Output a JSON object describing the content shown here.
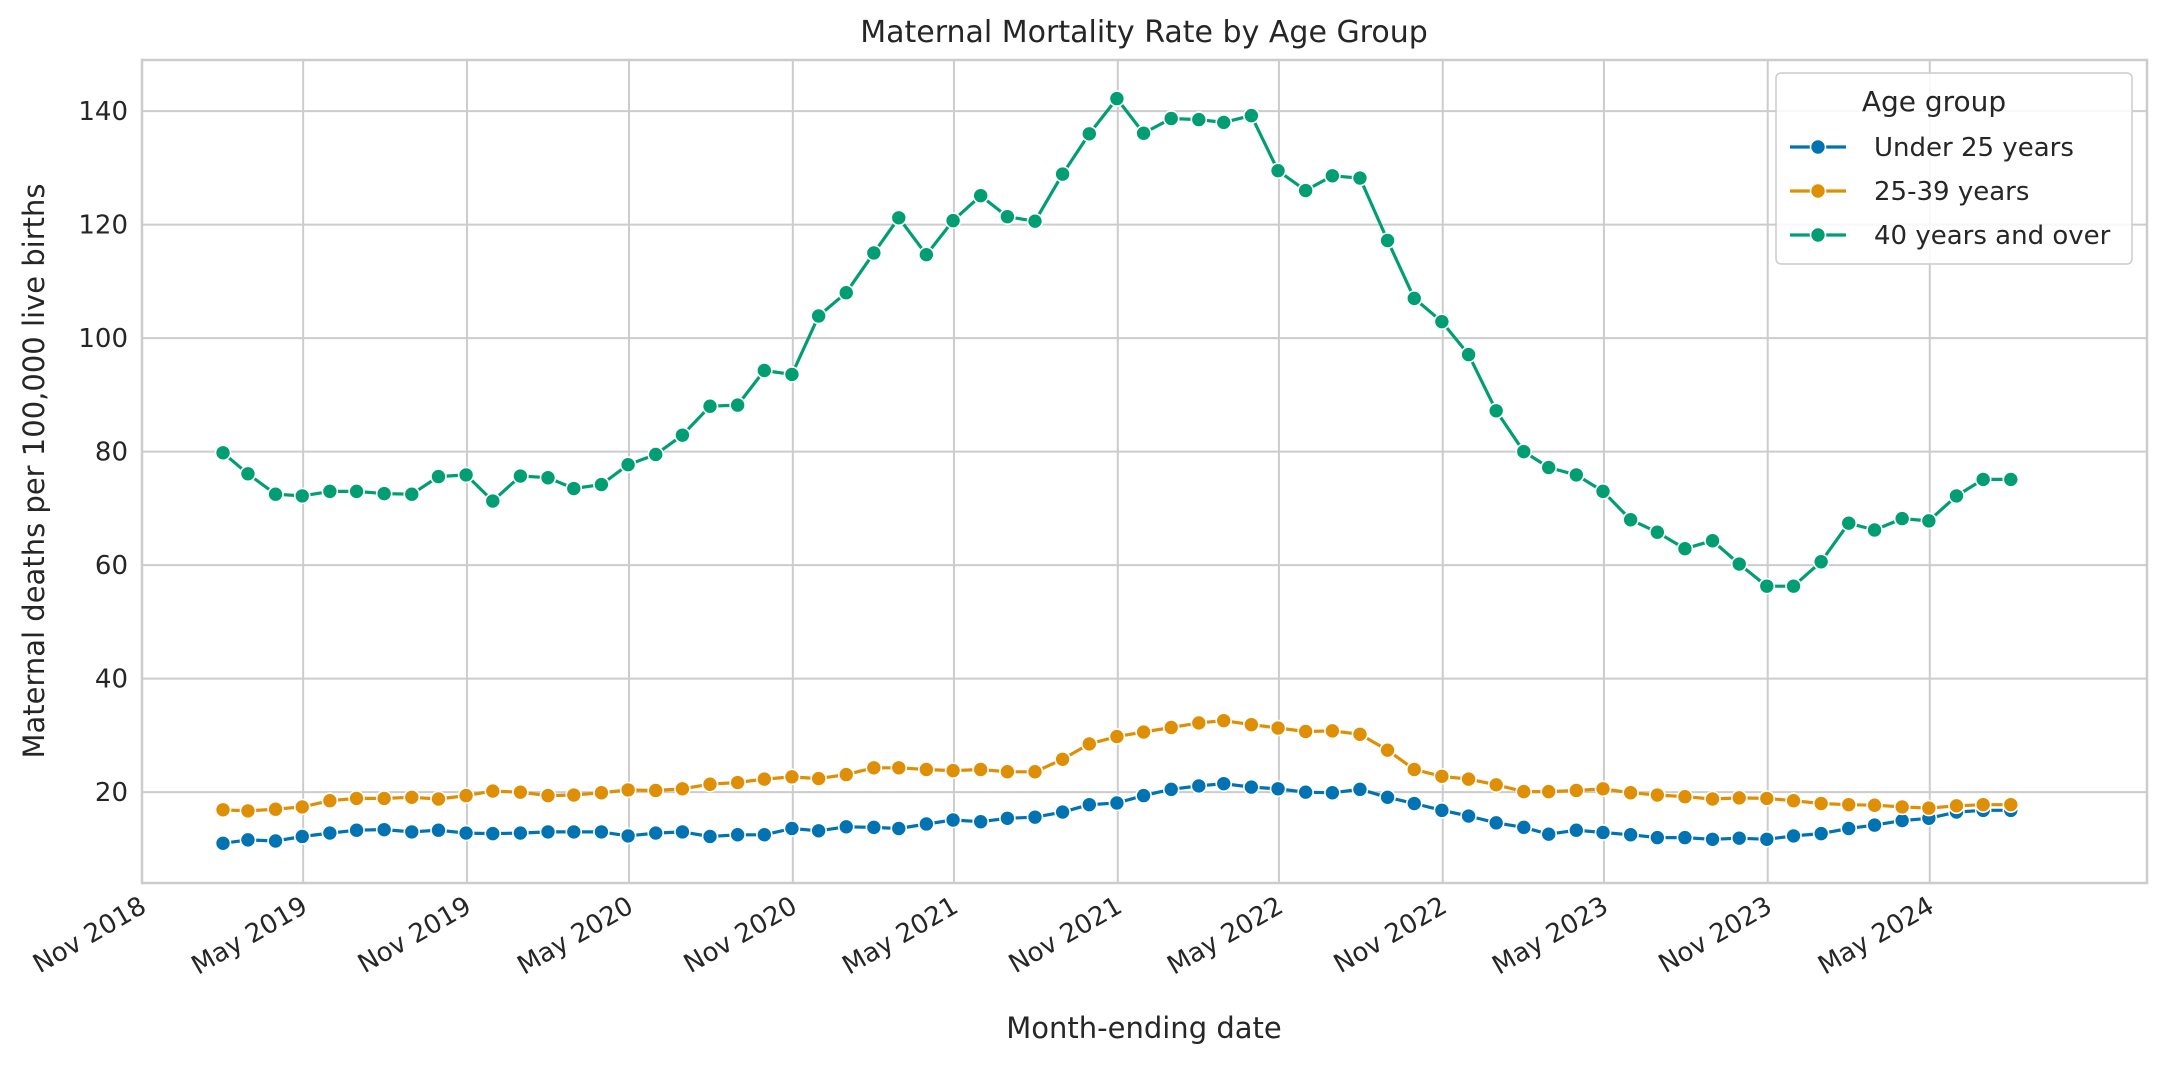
{
  "chart_data": {
    "type": "line",
    "title": "Maternal Mortality Rate by Age Group",
    "xlabel": "Month-ending date",
    "ylabel": "Maternal deaths per 100,000 live births",
    "xlim": [
      "2018-11-01",
      "2024-12-31"
    ],
    "ylim": [
      4,
      149
    ],
    "y_ticks": [
      20,
      40,
      60,
      80,
      100,
      120,
      140
    ],
    "x_ticks": [
      {
        "date": "2018-11-01",
        "label": "Nov 2018"
      },
      {
        "date": "2019-05-01",
        "label": "May 2019"
      },
      {
        "date": "2019-11-01",
        "label": "Nov 2019"
      },
      {
        "date": "2020-05-01",
        "label": "May 2020"
      },
      {
        "date": "2020-11-01",
        "label": "Nov 2020"
      },
      {
        "date": "2021-05-01",
        "label": "May 2021"
      },
      {
        "date": "2021-11-01",
        "label": "Nov 2021"
      },
      {
        "date": "2022-05-01",
        "label": "May 2022"
      },
      {
        "date": "2022-11-01",
        "label": "Nov 2022"
      },
      {
        "date": "2023-05-01",
        "label": "May 2023"
      },
      {
        "date": "2023-11-01",
        "label": "Nov 2023"
      },
      {
        "date": "2024-05-01",
        "label": "May 2024"
      }
    ],
    "grid": true,
    "legend": {
      "title": "Age group",
      "position": "top-right"
    },
    "x": [
      "2019-01-31",
      "2019-02-28",
      "2019-03-31",
      "2019-04-30",
      "2019-05-31",
      "2019-06-30",
      "2019-07-31",
      "2019-08-31",
      "2019-09-30",
      "2019-10-31",
      "2019-11-30",
      "2019-12-31",
      "2020-01-31",
      "2020-02-29",
      "2020-03-31",
      "2020-04-30",
      "2020-05-31",
      "2020-06-30",
      "2020-07-31",
      "2020-08-31",
      "2020-09-30",
      "2020-10-31",
      "2020-11-30",
      "2020-12-31",
      "2021-01-31",
      "2021-02-28",
      "2021-03-31",
      "2021-04-30",
      "2021-05-31",
      "2021-06-30",
      "2021-07-31",
      "2021-08-31",
      "2021-09-30",
      "2021-10-31",
      "2021-11-30",
      "2021-12-31",
      "2022-01-31",
      "2022-02-28",
      "2022-03-31",
      "2022-04-30",
      "2022-05-31",
      "2022-06-30",
      "2022-07-31",
      "2022-08-31",
      "2022-09-30",
      "2022-10-31",
      "2022-11-30",
      "2022-12-31",
      "2023-01-31",
      "2023-02-28",
      "2023-03-31",
      "2023-04-30",
      "2023-05-31",
      "2023-06-30",
      "2023-07-31",
      "2023-08-31",
      "2023-09-30",
      "2023-10-31",
      "2023-11-30",
      "2023-12-31",
      "2024-01-31",
      "2024-02-29",
      "2024-03-31",
      "2024-04-30",
      "2024-05-31",
      "2024-06-30",
      "2024-07-31"
    ],
    "series": [
      {
        "name": "Under 25 years",
        "color": "#0173b2",
        "values": [
          11.0,
          11.6,
          11.4,
          12.2,
          12.8,
          13.3,
          13.4,
          13.0,
          13.3,
          12.8,
          12.7,
          12.8,
          13.0,
          13.0,
          13.0,
          12.3,
          12.8,
          13.0,
          12.2,
          12.5,
          12.5,
          13.6,
          13.2,
          13.9,
          13.8,
          13.6,
          14.4,
          15.1,
          14.8,
          15.4,
          15.6,
          16.5,
          17.8,
          18.1,
          19.4,
          20.5,
          21.1,
          21.5,
          20.9,
          20.6,
          20.0,
          19.9,
          20.5,
          19.1,
          18.0,
          16.8,
          15.8,
          14.6,
          13.8,
          12.6,
          13.3,
          12.9,
          12.5,
          12.0,
          12.0,
          11.7,
          11.9,
          11.7,
          12.3,
          12.7,
          13.6,
          14.2,
          15.0,
          15.4,
          16.5,
          16.8,
          16.8
        ]
      },
      {
        "name": "25-39 years",
        "color": "#de8f05",
        "values": [
          16.9,
          16.7,
          17.0,
          17.4,
          18.5,
          18.9,
          18.9,
          19.1,
          18.8,
          19.4,
          20.2,
          20.0,
          19.4,
          19.5,
          19.9,
          20.4,
          20.3,
          20.6,
          21.4,
          21.7,
          22.3,
          22.7,
          22.4,
          23.1,
          24.3,
          24.3,
          24.0,
          23.8,
          24.0,
          23.6,
          23.6,
          25.8,
          28.5,
          29.8,
          30.6,
          31.4,
          32.2,
          32.6,
          31.9,
          31.3,
          30.7,
          30.8,
          30.2,
          27.4,
          24.0,
          22.8,
          22.3,
          21.3,
          20.1,
          20.1,
          20.3,
          20.6,
          19.9,
          19.5,
          19.2,
          18.8,
          19.0,
          18.9,
          18.5,
          18.0,
          17.8,
          17.7,
          17.4,
          17.2,
          17.6,
          17.8,
          17.8
        ]
      },
      {
        "name": "40 years and over",
        "color": "#029e73",
        "values": [
          79.8,
          76.1,
          72.5,
          72.2,
          73.0,
          73.0,
          72.6,
          72.5,
          75.6,
          75.9,
          71.3,
          75.7,
          75.4,
          73.5,
          74.2,
          77.7,
          79.5,
          82.9,
          88.0,
          88.2,
          94.3,
          93.6,
          103.9,
          108.0,
          115.0,
          121.2,
          114.7,
          120.7,
          125.1,
          121.4,
          120.6,
          128.9,
          136.0,
          142.2,
          136.1,
          138.7,
          138.5,
          138.0,
          139.2,
          129.5,
          126.0,
          128.6,
          128.2,
          117.2,
          107.0,
          102.9,
          97.1,
          87.2,
          80.0,
          77.2,
          75.9,
          73.0,
          68.0,
          65.8,
          62.9,
          64.3,
          60.2,
          56.3,
          56.3,
          60.6,
          67.4,
          66.2,
          68.2,
          67.8,
          72.2,
          75.1,
          75.1
        ]
      }
    ]
  }
}
